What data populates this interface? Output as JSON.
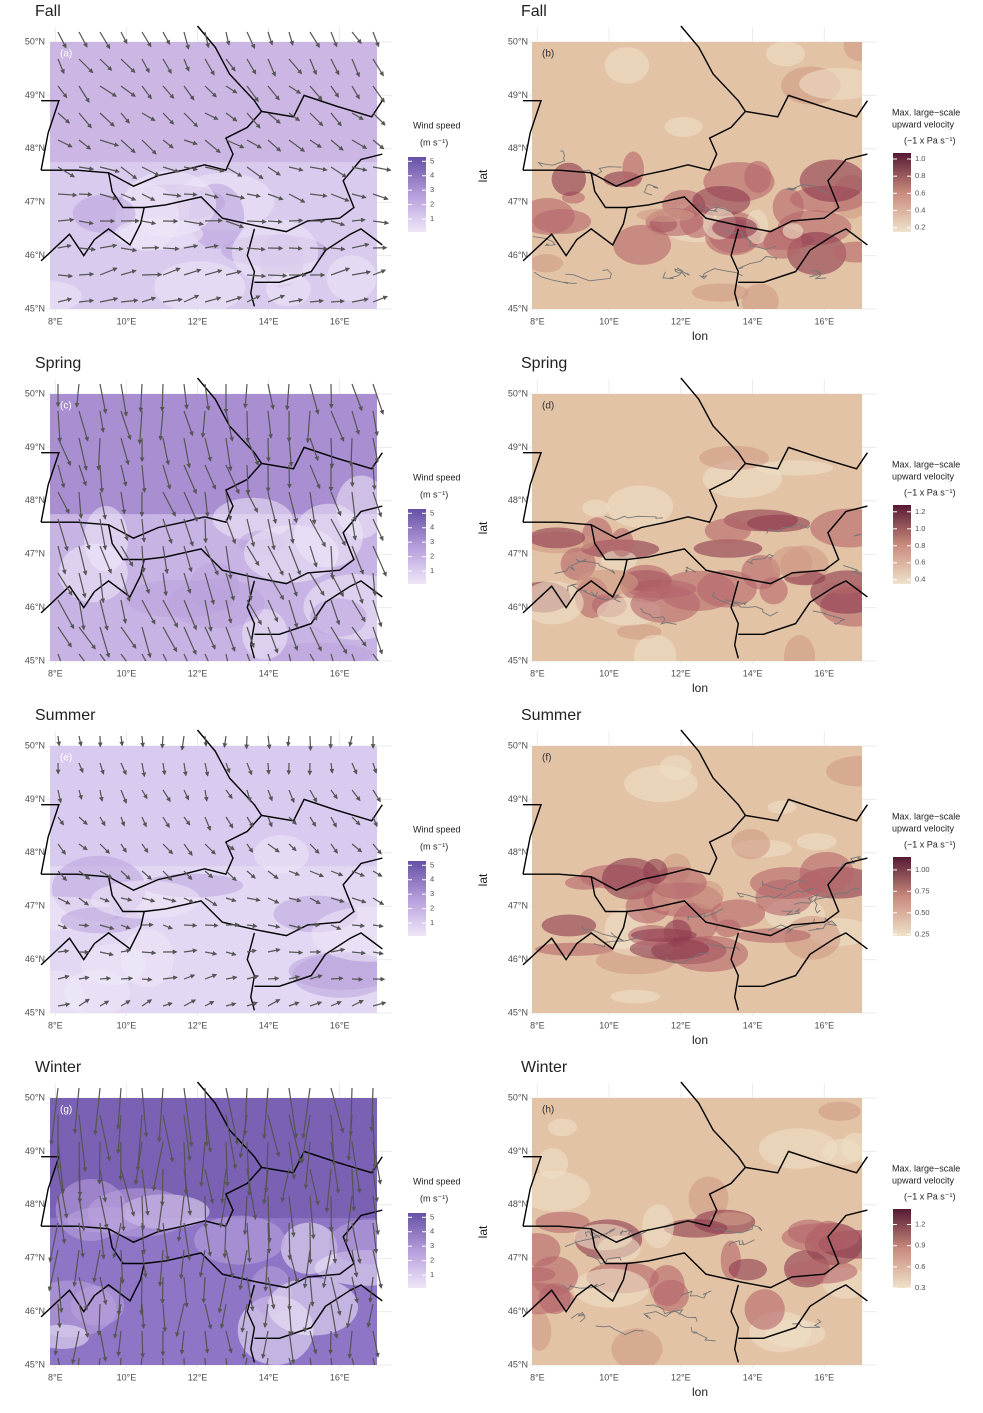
{
  "lat_lim": [
    45,
    50
  ],
  "lon_lim": [
    7.85,
    17.05
  ],
  "lat_ticks": [
    {
      "value": 50,
      "label": "50°N"
    },
    {
      "value": 49,
      "label": "49°N"
    },
    {
      "value": 48,
      "label": "48°N"
    },
    {
      "value": 47,
      "label": "47°N"
    },
    {
      "value": 46,
      "label": "46°N"
    },
    {
      "value": 45,
      "label": "45°N"
    }
  ],
  "lon_ticks": [
    {
      "value": 8,
      "label": "8°E"
    },
    {
      "value": 10,
      "label": "10°E"
    },
    {
      "value": 12,
      "label": "12°E"
    },
    {
      "value": 14,
      "label": "14°E"
    },
    {
      "value": 16,
      "label": "16°E"
    }
  ],
  "axis_labels": {
    "x": "lon",
    "y": "lat"
  },
  "wind_legend": {
    "title": "Wind speed",
    "unit": "(m s⁻¹)",
    "lim": [
      0.1,
      5.3
    ],
    "ticks": [
      1,
      2,
      3,
      4,
      5
    ]
  },
  "uplift_legend_title": [
    "Max. large−scale",
    "upward velocity"
  ],
  "uplift_legend_unit": "(−1 x Pa s⁻¹)",
  "rows": [
    {
      "season": "Fall",
      "wind_panel": "(a)",
      "uplift_panel": "(b)",
      "uplift_lim": [
        0.15,
        1.07
      ],
      "uplift_ticks": [
        0.2,
        0.4,
        0.6,
        0.8,
        {
          "value": 1,
          "label": "1.0"
        }
      ]
    },
    {
      "season": "Spring",
      "wind_panel": "(c)",
      "uplift_panel": "(d)",
      "uplift_lim": [
        0.35,
        1.28
      ],
      "uplift_ticks": [
        0.4,
        0.6,
        0.8,
        {
          "value": 1,
          "label": "1.0"
        },
        1.2
      ]
    },
    {
      "season": "Summer",
      "wind_panel": "(e)",
      "uplift_panel": "(f)",
      "uplift_lim": [
        0.23,
        1.15
      ],
      "uplift_ticks": [
        0.25,
        {
          "value": 0.5,
          "label": "0.50"
        },
        0.75,
        {
          "value": 1,
          "label": "1.00"
        }
      ]
    },
    {
      "season": "Winter",
      "wind_panel": "(g)",
      "uplift_panel": "(h)",
      "uplift_lim": [
        0.3,
        1.42
      ],
      "uplift_ticks": [
        0.3,
        0.6,
        0.9,
        1.2
      ]
    }
  ]
}
